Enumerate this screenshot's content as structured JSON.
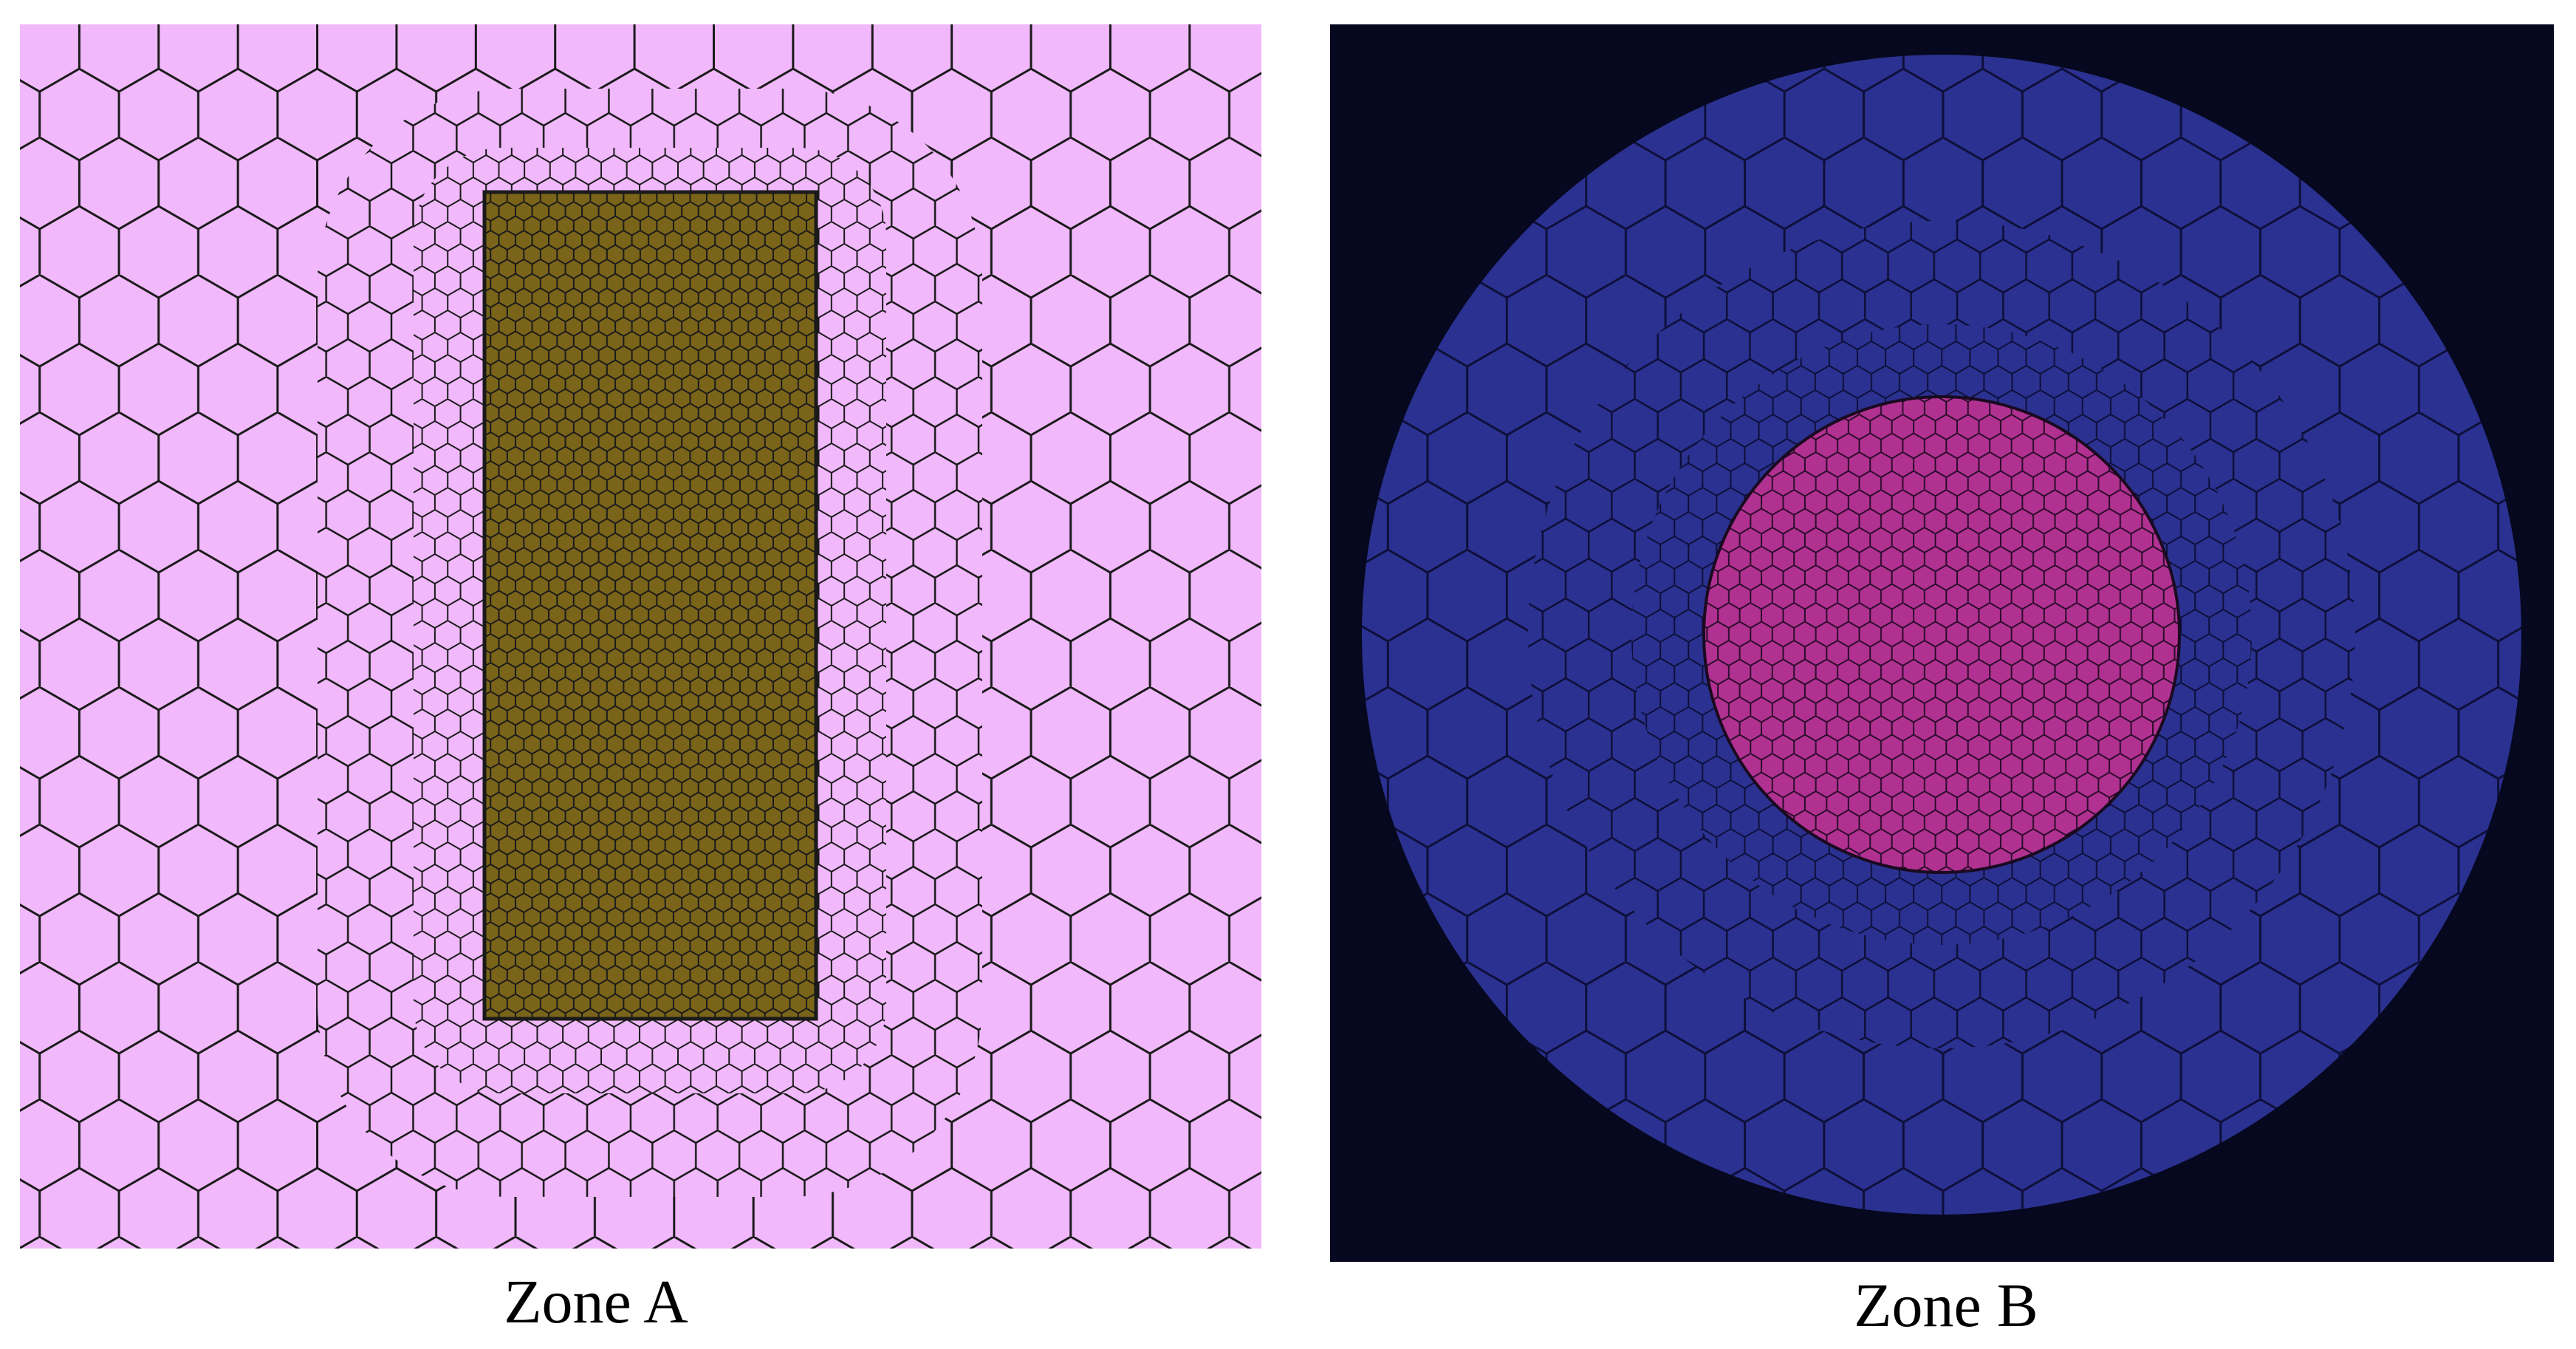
{
  "panels": [
    {
      "caption": "Zone A"
    },
    {
      "caption": "Zone B"
    }
  ]
}
